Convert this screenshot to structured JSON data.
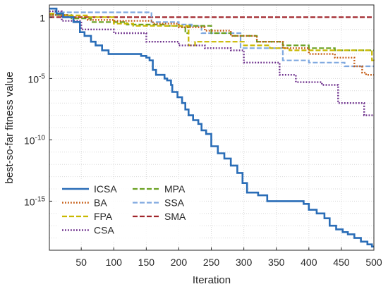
{
  "chart_data": {
    "type": "line",
    "title": "",
    "xlabel": "Iteration",
    "ylabel": "best-so-far fitness value",
    "x_scale": "linear",
    "y_scale": "log",
    "xlim": [
      1,
      500
    ],
    "ylim": [
      1e-19,
      10.0
    ],
    "x_ticks": [
      50,
      100,
      150,
      200,
      250,
      300,
      350,
      400,
      450,
      500
    ],
    "x_tick_labels": [
      "50",
      "100",
      "150",
      "200",
      "250",
      "300",
      "350",
      "400",
      "450",
      "500"
    ],
    "y_ticks": [
      1.0,
      1e-05,
      1e-10,
      1e-15
    ],
    "y_tick_labels": [
      {
        "base": "10",
        "exp": "-15",
        "value": 1e-15
      },
      {
        "base": "10",
        "exp": "-10",
        "value": 1e-10
      },
      {
        "base": "10",
        "exp": "-5",
        "value": 1e-05
      },
      {
        "base": "1",
        "exp": "",
        "value": 1
      }
    ],
    "grid": true,
    "legend_position": "bottom-left",
    "series": [
      {
        "name": "ICSA",
        "color": "#2a6db7",
        "style": "solid",
        "points": [
          [
            1,
            5
          ],
          [
            12,
            2
          ],
          [
            22,
            1
          ],
          [
            38,
            0.4
          ],
          [
            48,
            0.06
          ],
          [
            55,
            0.03
          ],
          [
            65,
            0.01
          ],
          [
            72,
            0.005
          ],
          [
            82,
            0.002
          ],
          [
            92,
            0.001
          ],
          [
            100,
            0.001
          ],
          [
            135,
            0.001
          ],
          [
            142,
            0.0007
          ],
          [
            150,
            0.0005
          ],
          [
            155,
            0.0003
          ],
          [
            160,
            5e-05
          ],
          [
            165,
            2e-05
          ],
          [
            170,
            2e-05
          ],
          [
            178,
            1e-05
          ],
          [
            182,
            7e-06
          ],
          [
            188,
            3e-06
          ],
          [
            190,
            8e-07
          ],
          [
            198,
            3e-07
          ],
          [
            205,
            1e-07
          ],
          [
            210,
            3e-08
          ],
          [
            215,
            1e-08
          ],
          [
            222,
            4e-09
          ],
          [
            230,
            2e-09
          ],
          [
            235,
            6e-10
          ],
          [
            242,
            3e-10
          ],
          [
            250,
            3e-11
          ],
          [
            260,
            8e-12
          ],
          [
            270,
            3e-12
          ],
          [
            280,
            8e-13
          ],
          [
            290,
            2e-13
          ],
          [
            298,
            3e-14
          ],
          [
            305,
            5e-15
          ],
          [
            312,
            5e-15
          ],
          [
            322,
            3e-15
          ],
          [
            336,
            1e-15
          ],
          [
            350,
            1e-15
          ],
          [
            382,
            1e-15
          ],
          [
            392,
            6e-16
          ],
          [
            400,
            2e-16
          ],
          [
            412,
            1e-16
          ],
          [
            424,
            4e-17
          ],
          [
            432,
            1e-17
          ],
          [
            442,
            5e-18
          ],
          [
            452,
            3e-18
          ],
          [
            460,
            2e-18
          ],
          [
            470,
            1e-18
          ],
          [
            480,
            5e-19
          ],
          [
            490,
            3e-19
          ],
          [
            497,
            2e-19
          ],
          [
            500,
            2e-19
          ]
        ]
      },
      {
        "name": "BA",
        "color": "#c55a11",
        "style": "dotted",
        "points": [
          [
            1,
            1.5
          ],
          [
            30,
            1.0
          ],
          [
            60,
            0.6
          ],
          [
            100,
            0.5
          ],
          [
            160,
            0.3
          ],
          [
            200,
            0.15
          ],
          [
            240,
            0.08
          ],
          [
            280,
            0.03
          ],
          [
            320,
            0.01
          ],
          [
            360,
            0.003
          ],
          [
            400,
            0.001
          ],
          [
            440,
            0.0005
          ],
          [
            470,
            0.0001
          ],
          [
            482,
            3e-05
          ],
          [
            488,
            2e-05
          ],
          [
            500,
            2e-05
          ]
        ]
      },
      {
        "name": "FPA",
        "color": "#c9b800",
        "style": "dashed",
        "points": [
          [
            1,
            2
          ],
          [
            20,
            1.4
          ],
          [
            60,
            1
          ],
          [
            100,
            0.3
          ],
          [
            130,
            0.2
          ],
          [
            190,
            0.2
          ],
          [
            210,
            0.2
          ],
          [
            215,
            0.005
          ],
          [
            225,
            0.01
          ],
          [
            260,
            0.01
          ],
          [
            300,
            0.005
          ],
          [
            340,
            0.003
          ],
          [
            370,
            0.002
          ],
          [
            440,
            0.002
          ],
          [
            480,
            0.002
          ],
          [
            490,
            0.002
          ],
          [
            497,
            0.0003
          ],
          [
            500,
            0.0002
          ]
        ]
      },
      {
        "name": "CSA",
        "color": "#6d2f8c",
        "style": "dotted",
        "points": [
          [
            1,
            3
          ],
          [
            20,
            0.5
          ],
          [
            50,
            0.1
          ],
          [
            100,
            0.05
          ],
          [
            150,
            0.01
          ],
          [
            200,
            0.005
          ],
          [
            240,
            0.003
          ],
          [
            280,
            0.002
          ],
          [
            300,
            0.0002
          ],
          [
            350,
            0.0002
          ],
          [
            355,
            2e-05
          ],
          [
            380,
            5e-06
          ],
          [
            420,
            3e-06
          ],
          [
            440,
            3e-06
          ],
          [
            445,
            1e-07
          ],
          [
            480,
            1e-07
          ],
          [
            485,
            1e-08
          ],
          [
            500,
            1e-08
          ]
        ]
      },
      {
        "name": "MPA",
        "color": "#6aa121",
        "style": "dashed",
        "points": [
          [
            1,
            1.5
          ],
          [
            35,
            0.8
          ],
          [
            65,
            0.4
          ],
          [
            120,
            0.25
          ],
          [
            180,
            0.2
          ],
          [
            205,
            0.15
          ],
          [
            210,
            0.05
          ],
          [
            215,
            0.2
          ],
          [
            250,
            0.05
          ],
          [
            280,
            0.03
          ],
          [
            320,
            0.01
          ],
          [
            360,
            0.005
          ],
          [
            400,
            0.003
          ],
          [
            440,
            0.002
          ],
          [
            500,
            0.002
          ]
        ]
      },
      {
        "name": "SSA",
        "color": "#7fa8df",
        "style": "dashed",
        "points": [
          [
            1,
            5
          ],
          [
            10,
            2.5
          ],
          [
            152,
            2.5
          ],
          [
            158,
            0.4
          ],
          [
            200,
            0.25
          ],
          [
            220,
            0.2
          ],
          [
            235,
            0.05
          ],
          [
            290,
            0.05
          ],
          [
            295,
            0.003
          ],
          [
            330,
            0.003
          ],
          [
            360,
            0.0003
          ],
          [
            400,
            0.0002
          ],
          [
            450,
            0.0002
          ],
          [
            455,
            0.0001
          ],
          [
            500,
            0.0001
          ]
        ]
      },
      {
        "name": "SMA",
        "color": "#a0252b",
        "style": "dashed",
        "points": [
          [
            1,
            1
          ],
          [
            500,
            1
          ]
        ]
      }
    ]
  }
}
